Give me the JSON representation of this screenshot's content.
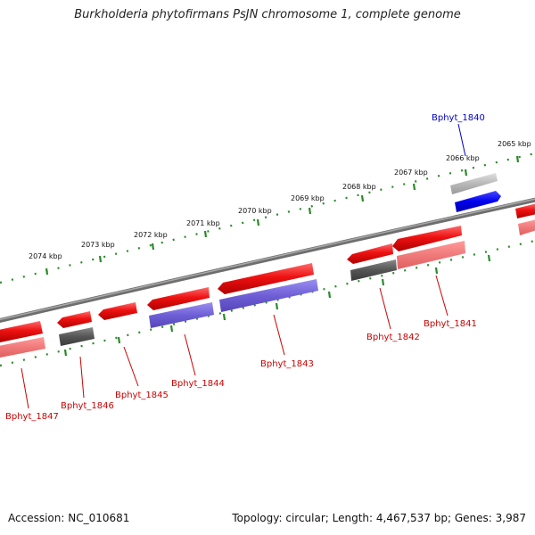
{
  "title": "Burkholderia phytofirmans PsJN chromosome 1, complete genome",
  "footer": {
    "accession": "Accession: NC_010681",
    "summary": "Topology: circular; Length: 4,467,537 bp; Genes: 3,987"
  },
  "map": {
    "colors": {
      "backbone": "#7a7a7a",
      "tick": "#2a8a2a",
      "gene_label": "#cc0000",
      "highlight_label": "#0000cc"
    },
    "tick_labels": [
      "2074 kbp",
      "2073 kbp",
      "2072 kbp",
      "2071 kbp",
      "2070 kbp",
      "2069 kbp",
      "2068 kbp",
      "2067 kbp",
      "2066 kbp",
      "2065 kbp"
    ],
    "genes": [
      {
        "name": "Bphyt_1840",
        "strand": "+",
        "highlight": true
      },
      {
        "name": "Bphyt_1841",
        "strand": "-"
      },
      {
        "name": "Bphyt_1842",
        "strand": "-"
      },
      {
        "name": "Bphyt_1843",
        "strand": "-"
      },
      {
        "name": "Bphyt_1844",
        "strand": "-"
      },
      {
        "name": "Bphyt_1845",
        "strand": "-"
      },
      {
        "name": "Bphyt_1846",
        "strand": "-"
      },
      {
        "name": "Bphyt_1847",
        "strand": "-"
      }
    ]
  }
}
